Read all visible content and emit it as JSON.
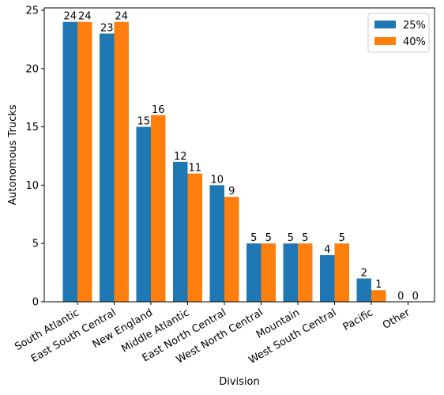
{
  "chart_data": {
    "type": "bar",
    "xlabel": "Division",
    "ylabel": "Autonomous Trucks",
    "categories": [
      "South Atlantic",
      "East South Central",
      "New England",
      "Middle Atlantic",
      "East North Central",
      "West North Central",
      "Mountain",
      "West South Central",
      "Pacific",
      "Other"
    ],
    "series": [
      {
        "name": "25%",
        "values": [
          24,
          23,
          15,
          12,
          10,
          5,
          5,
          4,
          2,
          0
        ],
        "color": "#1f77b4"
      },
      {
        "name": "40%",
        "values": [
          24,
          24,
          16,
          11,
          9,
          5,
          5,
          5,
          1,
          0
        ],
        "color": "#ff7f0e"
      }
    ],
    "ylim": [
      0,
      25.2
    ],
    "yticks": [
      0,
      5,
      10,
      15,
      20,
      25
    ],
    "legend": "top-right",
    "grid": false
  }
}
